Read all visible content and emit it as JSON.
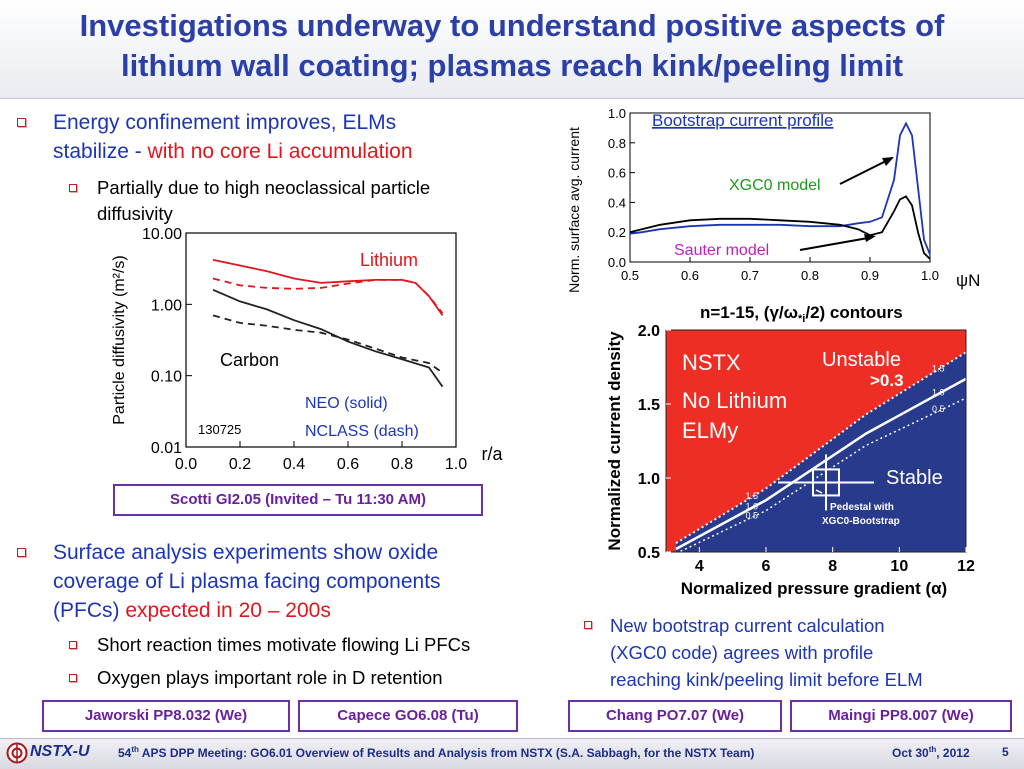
{
  "title": {
    "line1": "Investigations underway to understand positive aspects of",
    "line2": "lithium wall coating; plasmas reach kink/peeling limit"
  },
  "bullets": {
    "b1_part1": "Energy confinement improves, ELMs",
    "b1_part2": "stabilize - ",
    "b1_red": "with no core Li accumulation",
    "b1_sub1_line1": "Partially due to high neoclassical particle",
    "b1_sub1_line2": "diffusivity",
    "b2_line1": "Surface analysis experiments show oxide",
    "b2_line2": "coverage of Li plasma facing components",
    "b2_line3_a": "(PFCs) ",
    "b2_line3_red": "expected in 20 – 200s",
    "b2_sub1": "Short reaction times motivate flowing Li PFCs",
    "b2_sub2": "Oxygen plays important role in D retention",
    "b3_line1": "New bootstrap current calculation",
    "b3_line2": "(XGC0 code) agrees with profile",
    "b3_line3": "reaching kink/peeling limit before ELM"
  },
  "refs": {
    "scotti": "Scotti GI2.05 (Invited – Tu 11:30 AM)",
    "jaworski": "Jaworski PP8.032 (We)",
    "capece": "Capece GO6.08 (Tu)",
    "chang": "Chang PO7.07 (We)",
    "maingi": "Maingi PP8.007 (We)"
  },
  "footer": {
    "logo": "NSTX-U",
    "meeting_num": "54",
    "meeting_sup": "th",
    "meeting_text": " APS DPP Meeting: GO6.01 Overview of Results and Analysis from NSTX (S.A. Sabbagh, for the NSTX Team)",
    "date_a": "Oct 30",
    "date_sup": "th",
    "date_b": ", 2012",
    "page": "5"
  },
  "chart_data": [
    {
      "type": "line",
      "ylabel": "Particle diffusivity (m²/s)",
      "xlabel": "r/a",
      "xlim": [
        0.0,
        1.0
      ],
      "ylim": [
        0.01,
        10.0
      ],
      "yscale": "log",
      "xticks": [
        "0.0",
        "0.2",
        "0.4",
        "0.6",
        "0.8",
        "1.0"
      ],
      "yticks": [
        "10.00",
        "1.00",
        "0.10",
        "0.01"
      ],
      "annotations": {
        "lithium": "Lithium",
        "carbon": "Carbon",
        "neo": "NEO (solid)",
        "nclass": "NCLASS (dash)",
        "shot": "130725"
      },
      "colors": {
        "lithium": "#e0161e",
        "carbon": "#222222",
        "neo_text": "#1c35b8"
      },
      "series": [
        {
          "x": [
            0.1,
            0.2,
            0.3,
            0.4,
            0.5,
            0.6,
            0.7,
            0.8,
            0.85,
            0.9,
            0.95
          ],
          "y": [
            4.2,
            3.5,
            2.9,
            2.3,
            2.0,
            2.1,
            2.2,
            2.2,
            2.0,
            1.3,
            0.7
          ]
        },
        {
          "x": [
            0.1,
            0.2,
            0.3,
            0.4,
            0.5,
            0.6,
            0.7,
            0.8,
            0.85,
            0.9,
            0.95
          ],
          "y": [
            2.3,
            1.85,
            1.7,
            1.65,
            1.7,
            1.95,
            2.2,
            2.2,
            2.0,
            1.3,
            0.75
          ]
        },
        {
          "x": [
            0.1,
            0.2,
            0.3,
            0.4,
            0.5,
            0.6,
            0.7,
            0.8,
            0.9,
            0.95
          ],
          "y": [
            1.6,
            1.1,
            0.85,
            0.6,
            0.45,
            0.3,
            0.22,
            0.17,
            0.13,
            0.07
          ]
        },
        {
          "x": [
            0.1,
            0.2,
            0.3,
            0.4,
            0.5,
            0.6,
            0.7,
            0.8,
            0.9,
            0.95
          ],
          "y": [
            0.7,
            0.55,
            0.5,
            0.44,
            0.4,
            0.32,
            0.24,
            0.18,
            0.15,
            0.11
          ]
        }
      ]
    },
    {
      "type": "line",
      "title": "Bootstrap current profile",
      "ylabel": "Norm. surface avg. current",
      "xlabel": "ψN",
      "xlim": [
        0.5,
        1.0
      ],
      "ylim": [
        0.0,
        1.0
      ],
      "xticks": [
        "0.5",
        "0.6",
        "0.7",
        "0.8",
        "0.9",
        "1.0"
      ],
      "yticks": [
        "1.0",
        "0.8",
        "0.6",
        "0.4",
        "0.2",
        "0.0"
      ],
      "annotations": {
        "xgc0": "XGC0 model",
        "sauter": "Sauter model"
      },
      "colors": {
        "xgc0": "#1c35b8",
        "sauter": "#000000",
        "xgc0_label": "#1a9a1a",
        "sauter_label": "#c020c0"
      },
      "series": [
        {
          "x": [
            0.5,
            0.52,
            0.55,
            0.6,
            0.65,
            0.7,
            0.75,
            0.8,
            0.85,
            0.88,
            0.9,
            0.92,
            0.94,
            0.95,
            0.96,
            0.97,
            0.98,
            0.99,
            1.0
          ],
          "y": [
            0.19,
            0.2,
            0.22,
            0.24,
            0.25,
            0.25,
            0.25,
            0.24,
            0.24,
            0.26,
            0.27,
            0.3,
            0.55,
            0.85,
            0.93,
            0.85,
            0.5,
            0.15,
            0.05
          ]
        },
        {
          "x": [
            0.5,
            0.55,
            0.6,
            0.65,
            0.7,
            0.75,
            0.8,
            0.85,
            0.88,
            0.9,
            0.92,
            0.94,
            0.95,
            0.96,
            0.97,
            0.98,
            0.99,
            1.0
          ],
          "y": [
            0.2,
            0.25,
            0.28,
            0.29,
            0.29,
            0.28,
            0.27,
            0.25,
            0.22,
            0.18,
            0.2,
            0.34,
            0.42,
            0.44,
            0.38,
            0.2,
            0.06,
            0.02
          ]
        }
      ]
    },
    {
      "type": "heatmap",
      "title": "n=1-15, (γ/ω*i/2) contours",
      "title_parts": {
        "a": "n=1-15, (",
        "gamma": "γ",
        "slash": "/",
        "omega": "ω",
        "sub": "*i",
        "b": "/2) contours"
      },
      "ylabel": "Normalized current density",
      "xlabel": "Normalized pressure gradient (α)",
      "xlim": [
        3.0,
        12.0
      ],
      "ylim": [
        0.5,
        2.0
      ],
      "xticks": [
        "4",
        "6",
        "8",
        "10",
        "12"
      ],
      "yticks": [
        "2.0",
        "1.5",
        "1.0",
        "0.5"
      ],
      "regions": {
        "unstable_label": "Unstable",
        "unstable_value": ">0.3",
        "stable_label": "Stable",
        "nstx": "NSTX",
        "no_lithium": "No Lithium",
        "elmy": "ELMy",
        "pedestal_line1": "Pedestal with",
        "pedestal_line2": "XGC0-Bootstrap"
      },
      "contour_labels": [
        "1.5",
        "1.0",
        "0.5"
      ],
      "pedestal_point": {
        "x": 7.8,
        "y": 0.97
      },
      "colors": {
        "unstable": "#ee2e24",
        "stable": "#283a8c"
      },
      "contours": [
        {
          "label": "1.5",
          "x": [
            3.3,
            6.0,
            9.0,
            12.0
          ],
          "y": [
            0.56,
            0.93,
            1.43,
            1.85
          ]
        },
        {
          "label": "1.0",
          "x": [
            3.3,
            6.0,
            9.0,
            12.0
          ],
          "y": [
            0.52,
            0.85,
            1.3,
            1.67
          ]
        },
        {
          "label": "0.5",
          "x": [
            3.3,
            6.0,
            9.0,
            12.0
          ],
          "y": [
            0.49,
            0.78,
            1.22,
            1.54
          ]
        }
      ]
    }
  ]
}
